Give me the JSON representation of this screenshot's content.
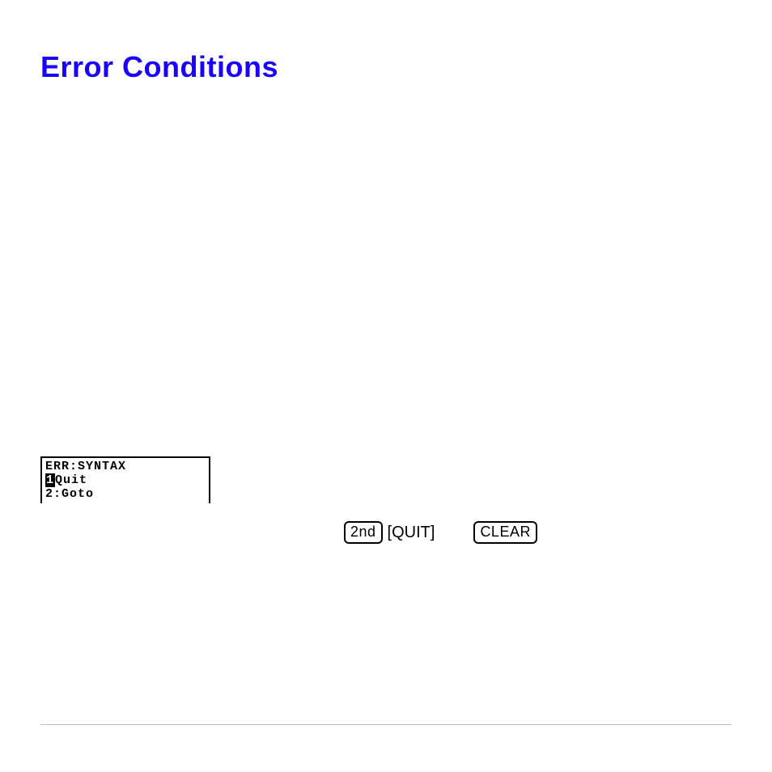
{
  "title": "Error Conditions",
  "calc_screen": {
    "line1": "ERR:SYNTAX",
    "line2_marker": "1",
    "line2_label": "Quit",
    "line3": "2:Goto"
  },
  "keys": {
    "second": "2nd",
    "quit": "[QUIT]",
    "clear": "CLEAR"
  },
  "colors": {
    "title": "#1a00ff",
    "background": "#ffffff",
    "ink": "#000000",
    "rule": "#bdbdbd"
  }
}
